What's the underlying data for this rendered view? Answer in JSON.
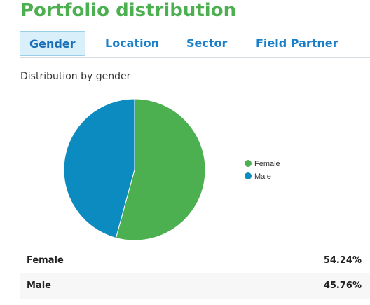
{
  "header": {
    "title": "Portfolio distribution"
  },
  "tabs": [
    {
      "label": "Gender",
      "active": true
    },
    {
      "label": "Location",
      "active": false
    },
    {
      "label": "Sector",
      "active": false
    },
    {
      "label": "Field Partner",
      "active": false
    }
  ],
  "section": {
    "heading": "Distribution by gender"
  },
  "chart_data": {
    "type": "pie",
    "categories": [
      "Female",
      "Male"
    ],
    "values": [
      54.24,
      45.76
    ],
    "colors": [
      "#4caf50",
      "#0b8bbf"
    ],
    "legend": "right"
  },
  "table": {
    "rows": [
      {
        "label": "Female",
        "value": "54.24%"
      },
      {
        "label": "Male",
        "value": "45.76%"
      }
    ]
  }
}
